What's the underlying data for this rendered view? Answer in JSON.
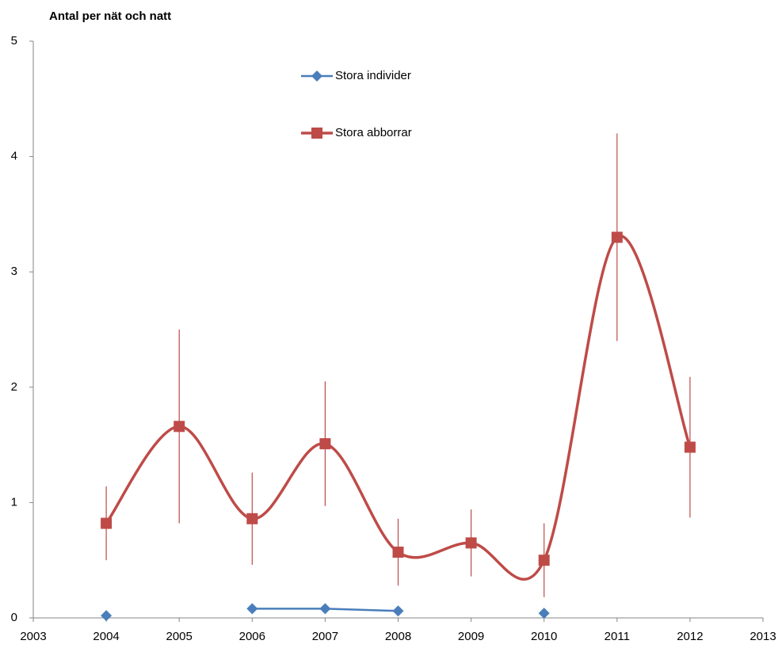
{
  "chart_data": {
    "type": "line",
    "y_label": "Antal per nät och natt",
    "x": [
      2004,
      2005,
      2006,
      2007,
      2008,
      2009,
      2010,
      2011,
      2012
    ],
    "series": [
      {
        "name": "Stora individer",
        "color": "#4a7ebb",
        "marker": "diamond",
        "smooth": false,
        "values": [
          0.02,
          null,
          0.08,
          0.08,
          0.06,
          null,
          0.04,
          null,
          null
        ]
      },
      {
        "name": "Stora abborrar",
        "color": "#be4b48",
        "marker": "square",
        "smooth": true,
        "values": [
          0.82,
          1.66,
          0.86,
          1.51,
          0.57,
          0.65,
          0.5,
          3.3,
          1.48
        ],
        "errors": [
          0.32,
          0.84,
          0.4,
          0.54,
          0.29,
          0.29,
          0.32,
          0.9,
          0.61
        ]
      }
    ],
    "xlim": [
      2003,
      2013
    ],
    "xticks": [
      2003,
      2004,
      2005,
      2006,
      2007,
      2008,
      2009,
      2010,
      2011,
      2012,
      2013
    ],
    "ylim": [
      0,
      5
    ],
    "yticks": [
      0,
      1,
      2,
      3,
      4,
      5
    ],
    "grid": false,
    "legend_position": "top-center"
  }
}
